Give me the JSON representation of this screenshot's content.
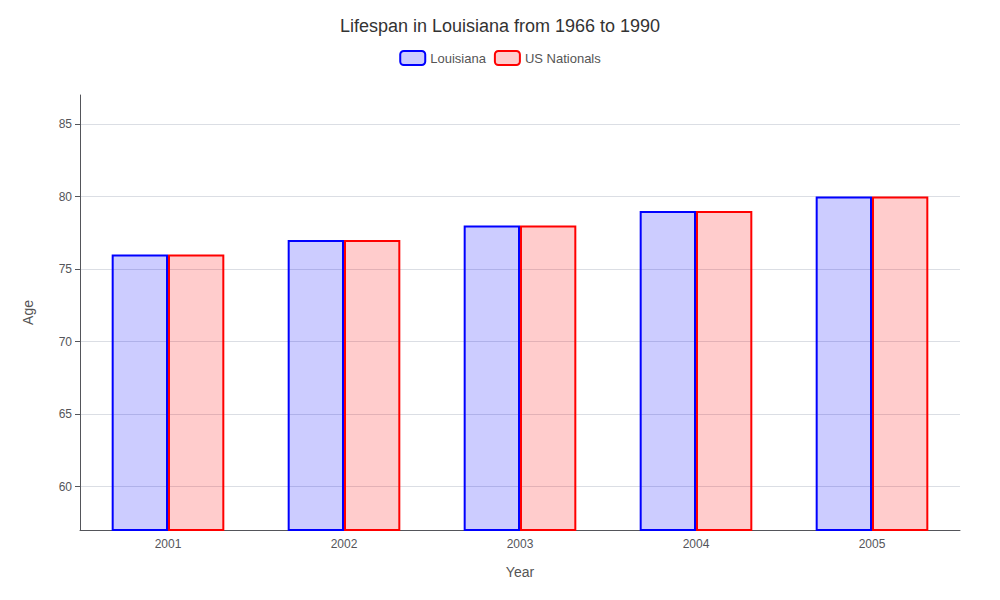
{
  "chart_data": {
    "type": "bar",
    "title": "Lifespan in Louisiana from 1966 to 1990",
    "xlabel": "Year",
    "ylabel": "Age",
    "categories": [
      "2001",
      "2002",
      "2003",
      "2004",
      "2005"
    ],
    "series": [
      {
        "name": "Louisiana",
        "color": "#0000ff",
        "values": [
          76,
          77,
          78,
          79,
          80
        ]
      },
      {
        "name": "US Nationals",
        "color": "#ff0000",
        "values": [
          76,
          77,
          78,
          79,
          80
        ]
      }
    ],
    "ylim": [
      57,
      87
    ],
    "yticks": [
      60,
      65,
      70,
      75,
      80,
      85
    ],
    "grid": true,
    "legend": "top"
  }
}
